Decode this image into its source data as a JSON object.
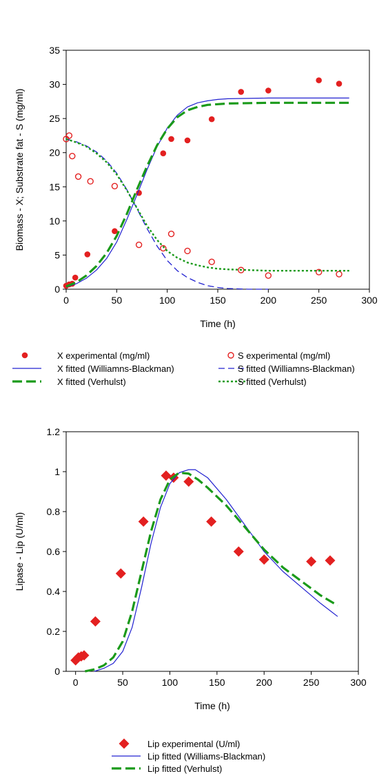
{
  "chart_data": [
    {
      "type": "scatter",
      "xlabel": "Time (h)",
      "ylabel": "Biomass - X; Substrate fat - S (mg/ml)",
      "xlim": [
        0,
        300
      ],
      "ylim": [
        0,
        35
      ],
      "xticks": [
        "0",
        "50",
        "100",
        "150",
        "200",
        "250",
        "300"
      ],
      "yticks": [
        "0",
        "5",
        "10",
        "15",
        "20",
        "25",
        "30",
        "35"
      ],
      "grid": false,
      "legend_position": "bottom",
      "series": [
        {
          "name": "X experimental (mg/ml)",
          "kind": "marker-filled-circle",
          "color": "#e32020",
          "x": [
            0,
            3,
            6,
            9,
            21,
            48,
            72,
            96,
            104,
            120,
            144,
            173,
            200,
            250,
            270
          ],
          "y": [
            0.5,
            0.7,
            0.8,
            1.7,
            5.1,
            8.5,
            14.1,
            19.9,
            22.0,
            21.8,
            24.9,
            28.9,
            29.1,
            30.6,
            30.1
          ]
        },
        {
          "name": "S experimental (mg/ml)",
          "kind": "marker-open-circle",
          "color": "#e32020",
          "x": [
            0,
            3,
            6,
            12,
            24,
            48,
            72,
            96,
            104,
            120,
            144,
            173,
            200,
            250,
            270
          ],
          "y": [
            22.0,
            22.5,
            19.5,
            16.5,
            15.8,
            15.1,
            6.5,
            6.0,
            8.1,
            5.6,
            4.0,
            2.8,
            2.0,
            2.5,
            2.2
          ]
        },
        {
          "name": "X fitted (Williamns-Blackman)",
          "kind": "line-solid-thin",
          "color": "#2020d0",
          "x": [
            0,
            10,
            20,
            30,
            40,
            50,
            60,
            70,
            80,
            90,
            100,
            110,
            120,
            130,
            140,
            150,
            160,
            180,
            200,
            230,
            260,
            280
          ],
          "y": [
            0.3,
            0.8,
            1.6,
            2.8,
            4.5,
            6.9,
            10.2,
            13.8,
            17.5,
            20.9,
            23.6,
            25.5,
            26.7,
            27.3,
            27.6,
            27.8,
            27.9,
            27.95,
            28.0,
            28.0,
            28.0,
            28.0
          ]
        },
        {
          "name": "X fitted (Verhulst)",
          "kind": "line-dashed-thick",
          "color": "#1a9a1a",
          "x": [
            0,
            10,
            20,
            30,
            40,
            50,
            60,
            70,
            80,
            90,
            100,
            110,
            120,
            130,
            140,
            150,
            160,
            180,
            200,
            230,
            260,
            280
          ],
          "y": [
            0.4,
            1.0,
            2.0,
            3.4,
            5.3,
            7.8,
            11.0,
            14.6,
            18.0,
            21.1,
            23.5,
            25.2,
            26.2,
            26.7,
            27.0,
            27.1,
            27.2,
            27.25,
            27.3,
            27.3,
            27.3,
            27.3
          ]
        },
        {
          "name": "S fitted (Williamns-Blackman)",
          "kind": "line-dashed-thin",
          "color": "#2020d0",
          "x": [
            0,
            10,
            20,
            30,
            40,
            50,
            60,
            70,
            80,
            90,
            100,
            110,
            120,
            130,
            140,
            150,
            160,
            170,
            180,
            190,
            200
          ],
          "y": [
            22.0,
            21.6,
            21.0,
            20.1,
            18.8,
            17.0,
            14.6,
            11.8,
            8.9,
            6.3,
            4.2,
            2.7,
            1.7,
            1.0,
            0.5,
            0.25,
            0.1,
            0.05,
            0.0,
            0.0,
            0.0
          ]
        },
        {
          "name": "S fitted (Verhulst)",
          "kind": "line-dotted",
          "color": "#1a9a1a",
          "x": [
            0,
            10,
            20,
            30,
            40,
            50,
            60,
            70,
            80,
            90,
            100,
            110,
            120,
            130,
            140,
            150,
            160,
            180,
            200,
            230,
            260,
            280
          ],
          "y": [
            22.0,
            21.5,
            20.9,
            19.9,
            18.6,
            16.8,
            14.5,
            11.9,
            9.3,
            7.2,
            5.6,
            4.6,
            3.9,
            3.5,
            3.2,
            3.0,
            2.9,
            2.8,
            2.7,
            2.7,
            2.7,
            2.7
          ]
        }
      ]
    },
    {
      "type": "scatter",
      "xlabel": "Time (h)",
      "ylabel": "Lipase - Lip (U/ml)",
      "xlim": [
        -10,
        300
      ],
      "ylim": [
        0,
        1.2
      ],
      "xticks": [
        "0",
        "50",
        "100",
        "150",
        "200",
        "250",
        "300"
      ],
      "yticks": [
        "0",
        "0.2",
        "0.4",
        "0.6",
        "0.8",
        "1",
        "1.2"
      ],
      "grid": false,
      "legend_position": "bottom",
      "series": [
        {
          "name": "Lip experimental (U/ml)",
          "kind": "marker-diamond",
          "color": "#e32020",
          "x": [
            0,
            3,
            6,
            9,
            21,
            48,
            72,
            96,
            104,
            120,
            144,
            173,
            200,
            250,
            270
          ],
          "y": [
            0.055,
            0.07,
            0.075,
            0.08,
            0.25,
            0.49,
            0.75,
            0.98,
            0.97,
            0.95,
            0.75,
            0.6,
            0.56,
            0.55,
            0.555
          ]
        },
        {
          "name": "Lip fitted (Williams-Blackman)",
          "kind": "line-solid-thin",
          "color": "#2020d0",
          "x": [
            20,
            30,
            40,
            50,
            60,
            70,
            80,
            90,
            100,
            110,
            120,
            127,
            140,
            160,
            180,
            200,
            220,
            240,
            260,
            278
          ],
          "y": [
            0.0,
            0.015,
            0.04,
            0.1,
            0.22,
            0.42,
            0.64,
            0.82,
            0.94,
            0.995,
            1.01,
            1.01,
            0.97,
            0.86,
            0.73,
            0.6,
            0.5,
            0.42,
            0.34,
            0.275
          ]
        },
        {
          "name": "Lip fitted (Verhulst)",
          "kind": "line-dashed-thick",
          "color": "#1a9a1a",
          "x": [
            10,
            20,
            30,
            40,
            50,
            60,
            70,
            80,
            90,
            100,
            110,
            120,
            130,
            140,
            160,
            180,
            200,
            220,
            240,
            260,
            278
          ],
          "y": [
            0.0,
            0.01,
            0.03,
            0.07,
            0.15,
            0.3,
            0.5,
            0.7,
            0.86,
            0.96,
            0.995,
            0.99,
            0.96,
            0.92,
            0.83,
            0.72,
            0.61,
            0.52,
            0.45,
            0.38,
            0.33
          ]
        }
      ]
    }
  ]
}
